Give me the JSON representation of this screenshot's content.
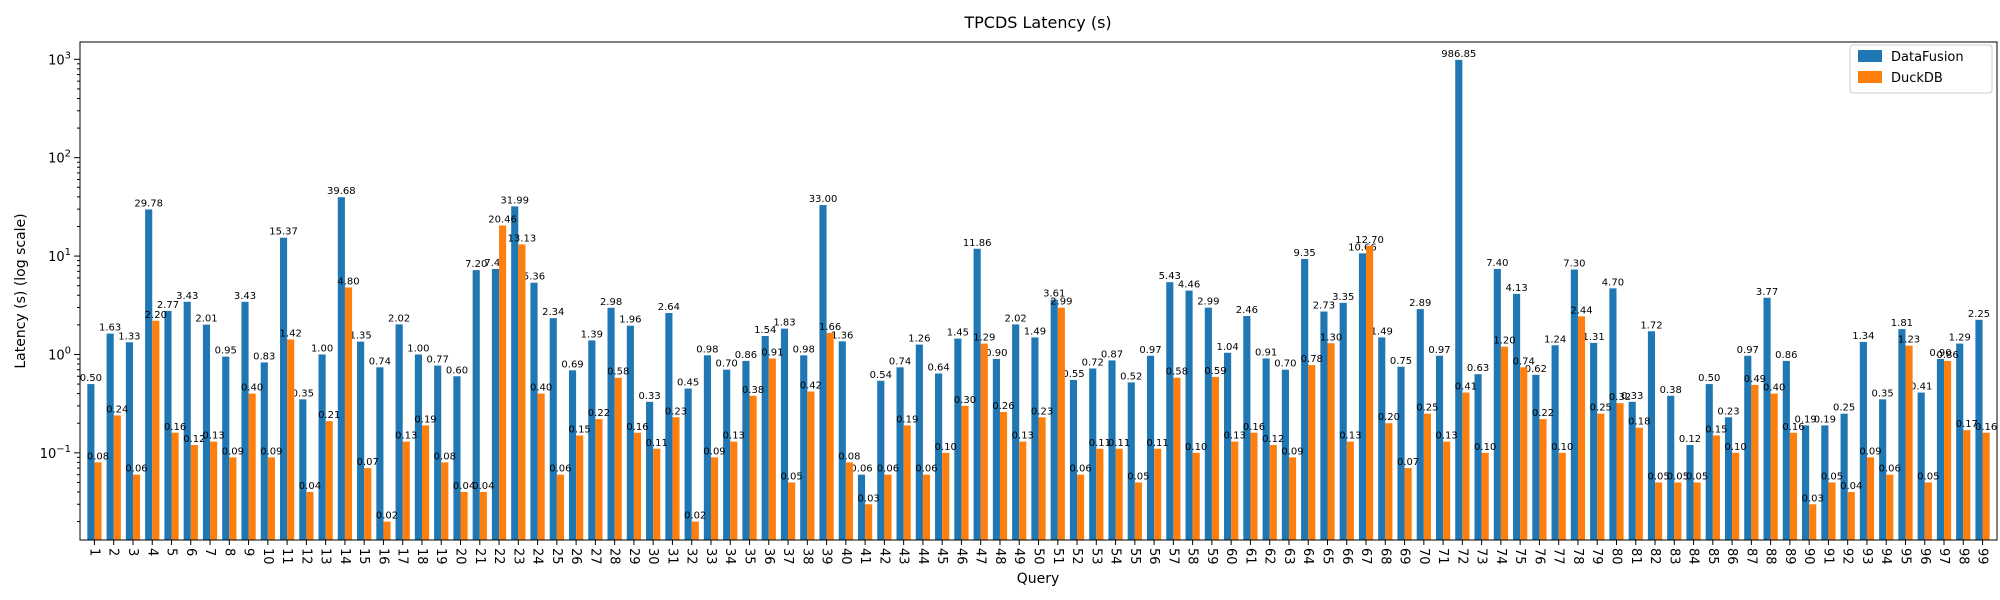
{
  "chart_data": {
    "type": "bar",
    "title": "TPCDS Latency (s)",
    "xlabel": "Query",
    "ylabel": "Latency (s) (log scale)",
    "yscale": "log",
    "ylim": [
      0.013,
      1500
    ],
    "yticks": [
      {
        "value": 0.1,
        "base": "10",
        "exp": "−1"
      },
      {
        "value": 1,
        "base": "10",
        "exp": "0"
      },
      {
        "value": 10,
        "base": "10",
        "exp": "1"
      },
      {
        "value": 100,
        "base": "10",
        "exp": "2"
      },
      {
        "value": 1000,
        "base": "10",
        "exp": "3"
      }
    ],
    "legend_position": "top-right",
    "grid": false,
    "categories": [
      "1",
      "2",
      "3",
      "4",
      "5",
      "6",
      "7",
      "8",
      "9",
      "10",
      "11",
      "12",
      "13",
      "14",
      "15",
      "16",
      "17",
      "18",
      "19",
      "20",
      "21",
      "22",
      "23",
      "24",
      "25",
      "26",
      "27",
      "28",
      "29",
      "30",
      "31",
      "32",
      "33",
      "34",
      "35",
      "36",
      "37",
      "38",
      "39",
      "40",
      "41",
      "42",
      "43",
      "44",
      "45",
      "46",
      "47",
      "48",
      "49",
      "50",
      "51",
      "52",
      "53",
      "54",
      "55",
      "56",
      "57",
      "58",
      "59",
      "60",
      "61",
      "62",
      "63",
      "64",
      "65",
      "66",
      "67",
      "68",
      "69",
      "70",
      "71",
      "72",
      "73",
      "74",
      "75",
      "76",
      "77",
      "78",
      "79",
      "80",
      "81",
      "82",
      "83",
      "84",
      "85",
      "86",
      "87",
      "88",
      "89",
      "90",
      "91",
      "92",
      "93",
      "94",
      "95",
      "96",
      "97",
      "98",
      "99"
    ],
    "series": [
      {
        "name": "DataFusion",
        "color": "#1f77b4",
        "values": [
          0.5,
          1.63,
          1.33,
          29.78,
          2.77,
          3.43,
          2.01,
          0.95,
          3.43,
          0.83,
          15.37,
          0.35,
          1.0,
          39.68,
          1.35,
          0.74,
          2.02,
          1.0,
          0.77,
          0.6,
          7.2,
          7.4,
          31.99,
          5.36,
          2.34,
          0.69,
          1.39,
          2.98,
          1.96,
          0.33,
          2.64,
          0.45,
          0.98,
          0.7,
          0.86,
          1.54,
          1.83,
          0.98,
          33.0,
          1.36,
          0.06,
          0.54,
          0.74,
          1.26,
          0.64,
          1.45,
          11.86,
          0.9,
          2.02,
          1.49,
          3.61,
          0.55,
          0.72,
          0.87,
          0.52,
          0.97,
          5.43,
          4.46,
          2.99,
          1.04,
          2.46,
          0.91,
          0.7,
          9.35,
          2.73,
          3.35,
          10.66,
          1.49,
          0.75,
          2.89,
          0.97,
          986.85,
          0.63,
          7.4,
          4.13,
          0.62,
          1.24,
          7.3,
          1.31,
          4.7,
          0.33,
          1.72,
          0.38,
          0.12,
          0.5,
          0.23,
          0.97,
          3.77,
          0.86,
          0.19,
          0.19,
          0.25,
          1.34,
          0.35,
          1.81,
          0.41,
          0.9,
          1.29,
          2.25
        ]
      },
      {
        "name": "DuckDB",
        "color": "#ff7f0e",
        "values": [
          0.08,
          0.24,
          0.06,
          2.2,
          0.16,
          0.12,
          0.13,
          0.09,
          0.4,
          0.09,
          1.42,
          0.04,
          0.21,
          4.8,
          0.07,
          0.02,
          0.13,
          0.19,
          0.08,
          0.04,
          0.04,
          20.46,
          13.13,
          0.4,
          0.06,
          0.15,
          0.22,
          0.58,
          0.16,
          0.11,
          0.23,
          0.02,
          0.09,
          0.13,
          0.38,
          0.91,
          0.05,
          0.42,
          1.66,
          0.08,
          0.03,
          0.06,
          0.19,
          0.06,
          0.1,
          0.3,
          1.29,
          0.26,
          0.13,
          0.23,
          2.99,
          0.06,
          0.11,
          0.11,
          0.05,
          0.11,
          0.58,
          0.1,
          0.59,
          0.13,
          0.16,
          0.12,
          0.09,
          0.78,
          1.3,
          0.13,
          12.7,
          0.2,
          0.07,
          0.25,
          0.13,
          0.41,
          0.1,
          1.2,
          0.74,
          0.22,
          0.1,
          2.44,
          0.25,
          0.32,
          0.18,
          0.05,
          0.05,
          0.05,
          0.15,
          0.1,
          0.49,
          0.4,
          0.16,
          0.03,
          0.05,
          0.04,
          0.09,
          0.06,
          1.23,
          0.05,
          0.86,
          0.17,
          0.16
        ]
      }
    ]
  }
}
